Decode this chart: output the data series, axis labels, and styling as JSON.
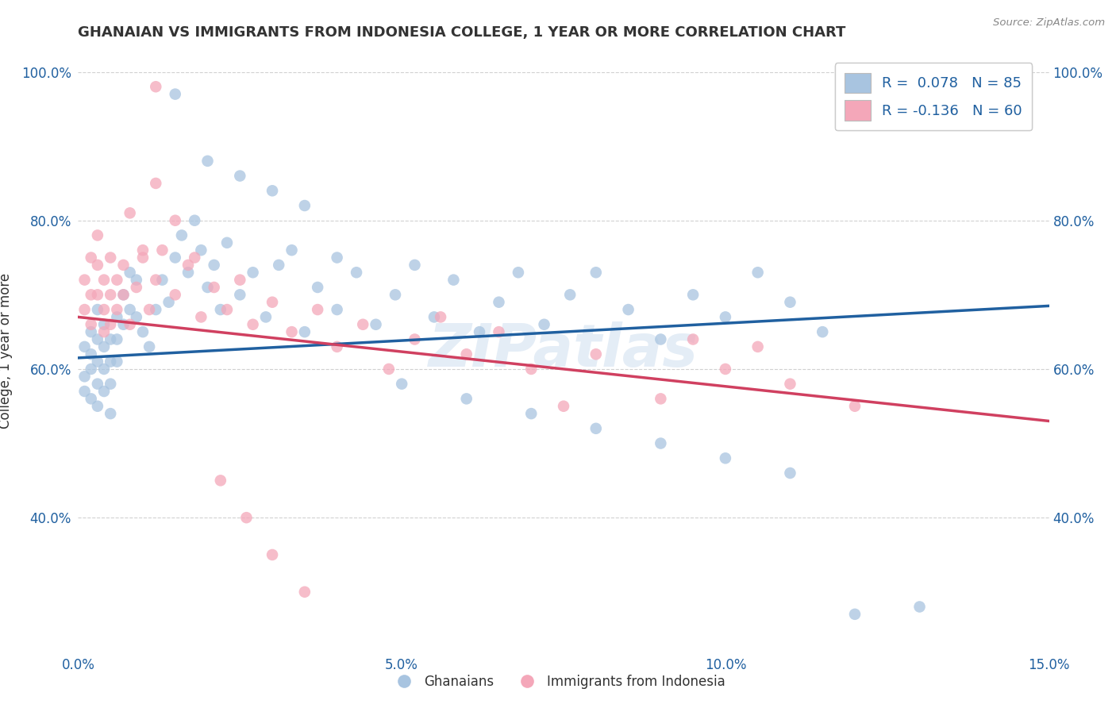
{
  "title": "GHANAIAN VS IMMIGRANTS FROM INDONESIA COLLEGE, 1 YEAR OR MORE CORRELATION CHART",
  "source": "Source: ZipAtlas.com",
  "ylabel": "College, 1 year or more",
  "x_min": 0.0,
  "x_max": 0.15,
  "y_min": 0.22,
  "y_max": 1.03,
  "x_ticks": [
    0.0,
    0.05,
    0.1,
    0.15
  ],
  "x_tick_labels": [
    "0.0%",
    "5.0%",
    "10.0%",
    "15.0%"
  ],
  "y_ticks": [
    0.4,
    0.6,
    0.8,
    1.0
  ],
  "y_tick_labels": [
    "40.0%",
    "60.0%",
    "80.0%",
    "100.0%"
  ],
  "legend_labels": [
    "Ghanaians",
    "Immigrants from Indonesia"
  ],
  "blue_color": "#a8c4e0",
  "pink_color": "#f4a7b9",
  "blue_line_color": "#2060a0",
  "pink_line_color": "#d04060",
  "blue_R": 0.078,
  "blue_N": 85,
  "pink_R": -0.136,
  "pink_N": 60,
  "watermark": "ZIPatlas",
  "blue_line_x": [
    0.0,
    0.15
  ],
  "blue_line_y": [
    0.615,
    0.685
  ],
  "pink_line_x": [
    0.0,
    0.15
  ],
  "pink_line_y": [
    0.67,
    0.53
  ],
  "blue_scatter_x": [
    0.001,
    0.001,
    0.001,
    0.002,
    0.002,
    0.002,
    0.002,
    0.003,
    0.003,
    0.003,
    0.003,
    0.003,
    0.004,
    0.004,
    0.004,
    0.004,
    0.005,
    0.005,
    0.005,
    0.005,
    0.006,
    0.006,
    0.006,
    0.007,
    0.007,
    0.008,
    0.008,
    0.009,
    0.009,
    0.01,
    0.011,
    0.012,
    0.013,
    0.014,
    0.015,
    0.016,
    0.017,
    0.018,
    0.019,
    0.02,
    0.021,
    0.022,
    0.023,
    0.025,
    0.027,
    0.029,
    0.031,
    0.033,
    0.035,
    0.037,
    0.04,
    0.043,
    0.046,
    0.049,
    0.052,
    0.055,
    0.058,
    0.062,
    0.065,
    0.068,
    0.072,
    0.076,
    0.08,
    0.085,
    0.09,
    0.095,
    0.1,
    0.105,
    0.11,
    0.115,
    0.02,
    0.025,
    0.03,
    0.035,
    0.04,
    0.05,
    0.06,
    0.07,
    0.08,
    0.09,
    0.1,
    0.11,
    0.12,
    0.13,
    0.015
  ],
  "blue_scatter_y": [
    0.63,
    0.59,
    0.57,
    0.65,
    0.62,
    0.6,
    0.56,
    0.64,
    0.61,
    0.58,
    0.55,
    0.68,
    0.66,
    0.63,
    0.6,
    0.57,
    0.64,
    0.61,
    0.58,
    0.54,
    0.67,
    0.64,
    0.61,
    0.7,
    0.66,
    0.73,
    0.68,
    0.72,
    0.67,
    0.65,
    0.63,
    0.68,
    0.72,
    0.69,
    0.75,
    0.78,
    0.73,
    0.8,
    0.76,
    0.71,
    0.74,
    0.68,
    0.77,
    0.7,
    0.73,
    0.67,
    0.74,
    0.76,
    0.65,
    0.71,
    0.68,
    0.73,
    0.66,
    0.7,
    0.74,
    0.67,
    0.72,
    0.65,
    0.69,
    0.73,
    0.66,
    0.7,
    0.73,
    0.68,
    0.64,
    0.7,
    0.67,
    0.73,
    0.69,
    0.65,
    0.88,
    0.86,
    0.84,
    0.82,
    0.75,
    0.58,
    0.56,
    0.54,
    0.52,
    0.5,
    0.48,
    0.46,
    0.27,
    0.28,
    0.97
  ],
  "pink_scatter_x": [
    0.001,
    0.001,
    0.002,
    0.002,
    0.002,
    0.003,
    0.003,
    0.003,
    0.004,
    0.004,
    0.004,
    0.005,
    0.005,
    0.005,
    0.006,
    0.006,
    0.007,
    0.007,
    0.008,
    0.009,
    0.01,
    0.011,
    0.012,
    0.013,
    0.015,
    0.017,
    0.019,
    0.021,
    0.023,
    0.025,
    0.027,
    0.03,
    0.033,
    0.037,
    0.04,
    0.044,
    0.048,
    0.052,
    0.056,
    0.06,
    0.065,
    0.07,
    0.075,
    0.08,
    0.09,
    0.095,
    0.1,
    0.105,
    0.11,
    0.12,
    0.008,
    0.01,
    0.012,
    0.015,
    0.018,
    0.022,
    0.026,
    0.03,
    0.035,
    0.012
  ],
  "pink_scatter_y": [
    0.68,
    0.72,
    0.75,
    0.7,
    0.66,
    0.74,
    0.7,
    0.78,
    0.72,
    0.68,
    0.65,
    0.7,
    0.75,
    0.66,
    0.72,
    0.68,
    0.74,
    0.7,
    0.66,
    0.71,
    0.75,
    0.68,
    0.72,
    0.76,
    0.7,
    0.74,
    0.67,
    0.71,
    0.68,
    0.72,
    0.66,
    0.69,
    0.65,
    0.68,
    0.63,
    0.66,
    0.6,
    0.64,
    0.67,
    0.62,
    0.65,
    0.6,
    0.55,
    0.62,
    0.56,
    0.64,
    0.6,
    0.63,
    0.58,
    0.55,
    0.81,
    0.76,
    0.85,
    0.8,
    0.75,
    0.45,
    0.4,
    0.35,
    0.3,
    0.98
  ]
}
